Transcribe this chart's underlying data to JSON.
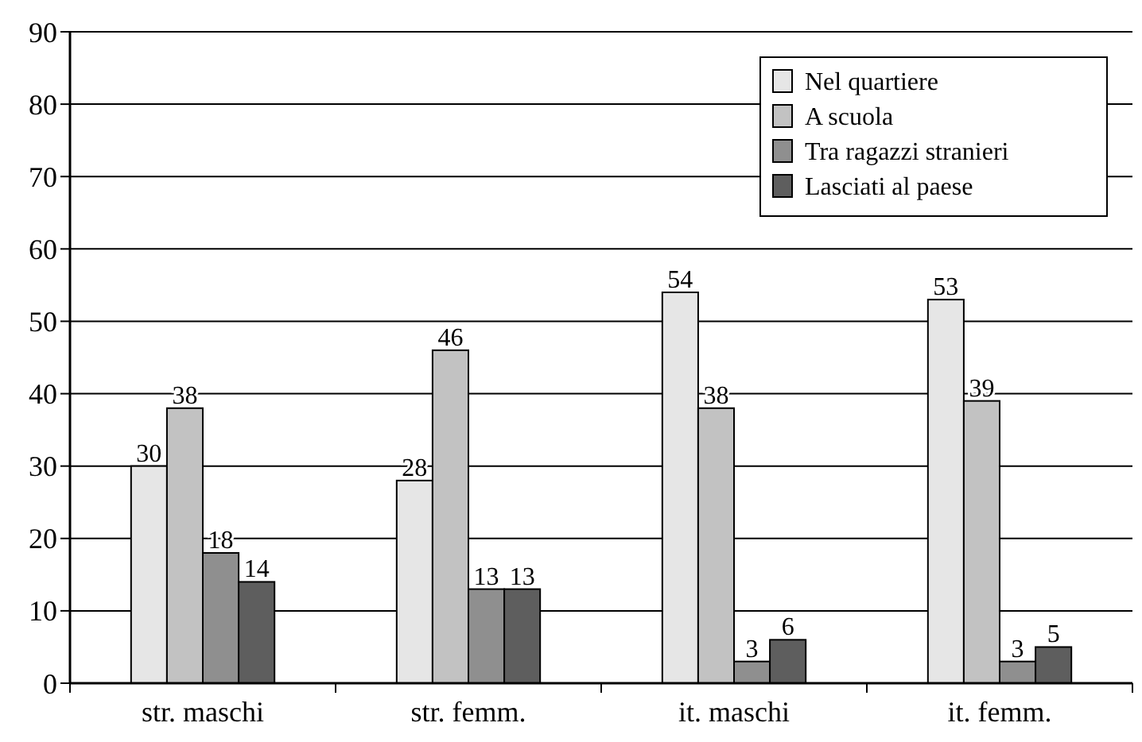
{
  "chart_data": {
    "type": "bar",
    "categories": [
      "str. maschi",
      "str. femm.",
      "it. maschi",
      "it. femm."
    ],
    "series": [
      {
        "name": "Nel quartiere",
        "color": "#e6e6e6",
        "values": [
          30,
          28,
          54,
          53
        ]
      },
      {
        "name": "A scuola",
        "color": "#c2c2c2",
        "values": [
          38,
          46,
          38,
          39
        ]
      },
      {
        "name": "Tra ragazzi stranieri",
        "color": "#8f8f8f",
        "values": [
          18,
          13,
          3,
          3
        ]
      },
      {
        "name": "Lasciati al paese",
        "color": "#5e5e5e",
        "values": [
          14,
          13,
          6,
          5
        ]
      }
    ],
    "ylim": [
      0,
      90
    ],
    "yticks": [
      0,
      10,
      20,
      30,
      40,
      50,
      60,
      70,
      80,
      90
    ],
    "grid": "y",
    "legend": "top right",
    "data_labels": true
  }
}
